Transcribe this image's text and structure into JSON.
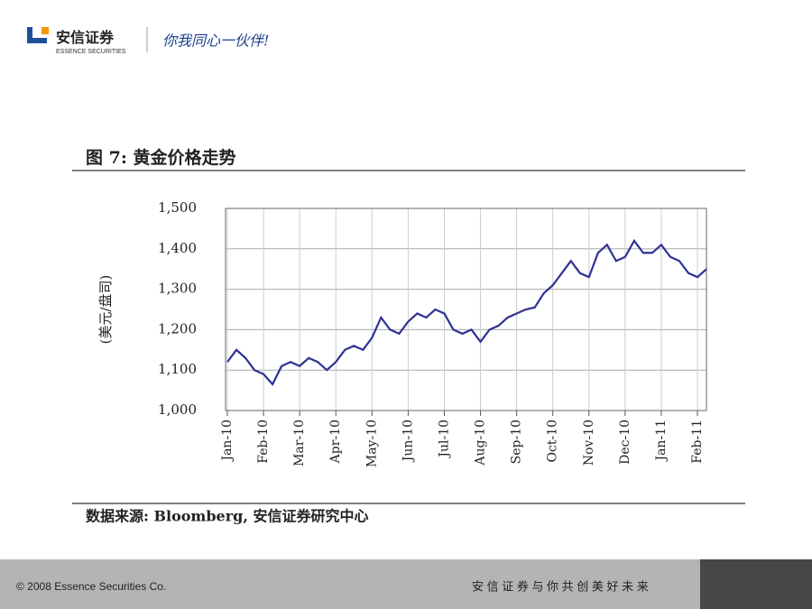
{
  "header": {
    "brand": "安信证券",
    "brand_en": "ESSENCE SECURITIES",
    "slogan": "你我同心一伙伴!"
  },
  "chart_data": {
    "type": "line",
    "title": "图 7: 黄金价格走势",
    "y_label": "(美元/盘司)",
    "categories": [
      "Jan-10",
      null,
      null,
      null,
      "Feb-10",
      null,
      null,
      null,
      "Mar-10",
      null,
      null,
      null,
      "Apr-10",
      null,
      null,
      null,
      "May-10",
      null,
      null,
      null,
      "Jun-10",
      null,
      null,
      null,
      "Jul-10",
      null,
      null,
      null,
      "Aug-10",
      null,
      null,
      null,
      "Sep-10",
      null,
      null,
      null,
      "Oct-10",
      null,
      null,
      null,
      "Nov-10",
      null,
      null,
      null,
      "Dec-10",
      null,
      null,
      null,
      "Jan-11",
      null,
      null,
      null,
      "Feb-11",
      null
    ],
    "series": [
      {
        "name": "黄金价格",
        "color": "#2e3192",
        "values": [
          1120,
          1150,
          1130,
          1100,
          1090,
          1065,
          1110,
          1120,
          1110,
          1130,
          1120,
          1100,
          1120,
          1150,
          1160,
          1150,
          1180,
          1230,
          1200,
          1190,
          1220,
          1240,
          1230,
          1250,
          1240,
          1200,
          1190,
          1200,
          1170,
          1200,
          1210,
          1230,
          1240,
          1250,
          1255,
          1290,
          1310,
          1340,
          1370,
          1340,
          1330,
          1390,
          1410,
          1370,
          1380,
          1420,
          1390,
          1390,
          1410,
          1380,
          1370,
          1340,
          1330,
          1350
        ]
      }
    ],
    "ylim": [
      1000,
      1500
    ],
    "yticks": [
      {
        "value": 1000,
        "label": "1,000"
      },
      {
        "value": 1100,
        "label": "1,100"
      },
      {
        "value": 1200,
        "label": "1,200"
      },
      {
        "value": 1300,
        "label": "1,300"
      },
      {
        "value": 1400,
        "label": "1,400"
      },
      {
        "value": 1500,
        "label": "1,500"
      }
    ],
    "grid": true,
    "source": "数据来源: Bloomberg, 安信证券研究中心"
  },
  "footer": {
    "copyright": "© 2008 Essence Securities Co.",
    "motto": "安 信 证 券 与 你 共 创 美 好 未 来"
  }
}
